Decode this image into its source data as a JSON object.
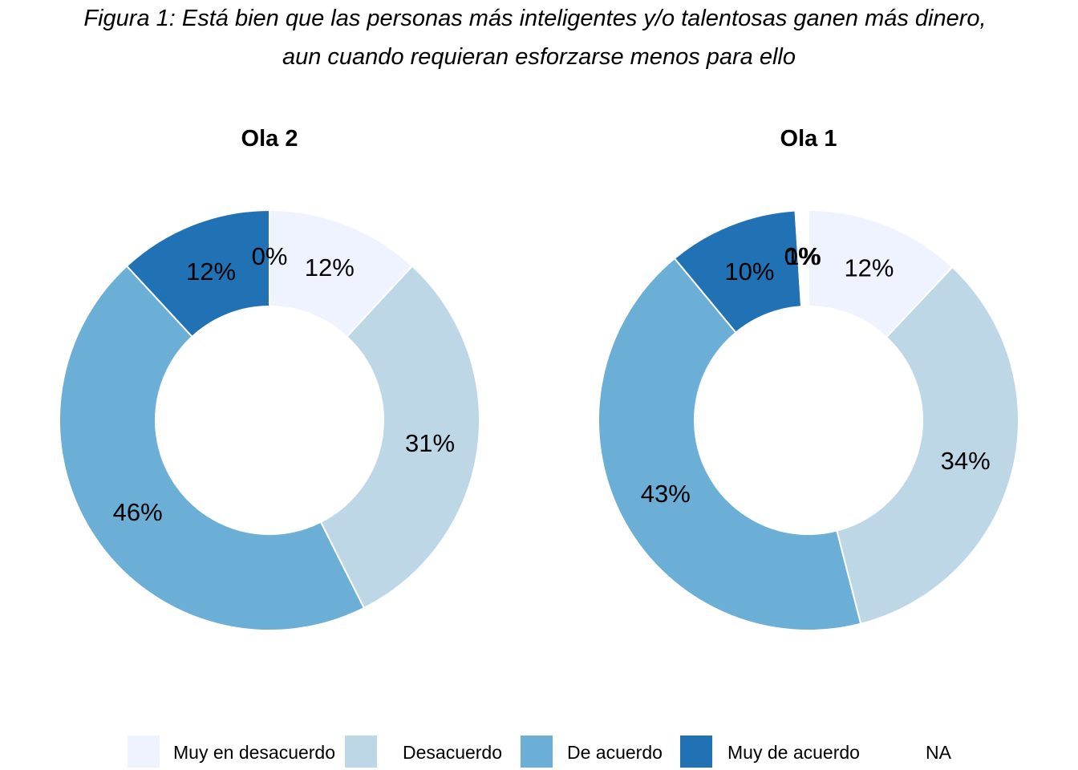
{
  "chart_data": {
    "type": "pie",
    "title": "Figura 1: Está bien que las personas más inteligentes y/o talentosas ganen más dinero,",
    "subtitle": "aun cuando requieran esforzarse menos para ello",
    "categories": [
      "Muy en desacuerdo",
      "Desacuerdo",
      "De acuerdo",
      "Muy de acuerdo",
      "NA"
    ],
    "colors": [
      "#eff3ff",
      "#bdd7e7",
      "#6baed6",
      "#2171b5",
      "#ffffff"
    ],
    "legend_position": "bottom",
    "donut": true,
    "panels": [
      {
        "title": "Ola 2",
        "values": [
          12,
          31,
          46,
          12,
          0
        ],
        "labels": [
          "12%",
          "31%",
          "46%",
          "12%",
          "0%"
        ]
      },
      {
        "title": "Ola 1",
        "values": [
          12,
          34,
          43,
          10,
          1
        ],
        "labels": [
          "12%",
          "34%",
          "43%",
          "10%",
          "1%"
        ],
        "extra_labels": [
          "0%"
        ]
      }
    ]
  }
}
